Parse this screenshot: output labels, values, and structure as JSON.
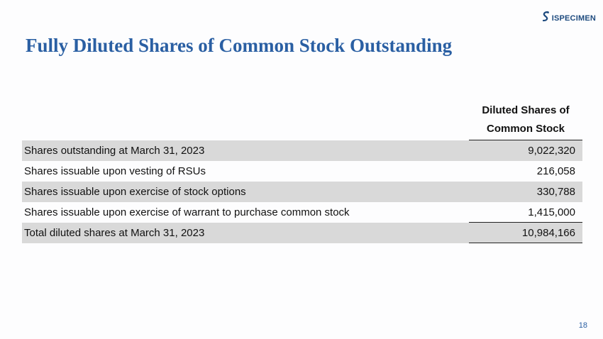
{
  "brand": {
    "logo_text": "ISPECIMEN",
    "logo_icon": "specimen-logo-icon"
  },
  "title": "Fully Diluted Shares of Common Stock Outstanding",
  "table": {
    "header": [
      "Diluted Shares of",
      "Common Stock"
    ],
    "rows": [
      {
        "label": "Shares outstanding at March 31, 2023",
        "value": "9,022,320"
      },
      {
        "label": "Shares issuable upon vesting of RSUs",
        "value": "216,058"
      },
      {
        "label": "Shares issuable upon exercise of stock options",
        "value": "330,788"
      },
      {
        "label": "Shares issuable upon exercise of warrant to purchase common stock",
        "value": "1,415,000"
      },
      {
        "label": "Total diluted shares at March 31, 2023",
        "value": "10,984,166"
      }
    ]
  },
  "page_number": "18",
  "colors": {
    "title": "#2a5fa3",
    "row_shade": "#d9d9d9",
    "logo": "#1d4a7e"
  }
}
